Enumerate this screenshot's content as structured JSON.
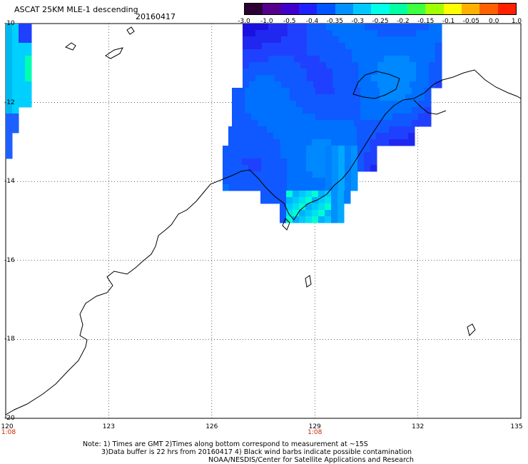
{
  "header": {
    "title": "ASCAT 25KM MLE-1 descending",
    "date": "20160417"
  },
  "colorbar": {
    "colors": [
      "#2b0033",
      "#55008c",
      "#4000cc",
      "#2020ff",
      "#0055ff",
      "#0090ff",
      "#00c8ff",
      "#00ffe6",
      "#00ffa0",
      "#40ff40",
      "#a0ff00",
      "#ffff00",
      "#ffb000",
      "#ff6000",
      "#ff2000"
    ],
    "labels": [
      "-3.0",
      "-1.0",
      "-0.5",
      "-0.4",
      "-0.35",
      "-0.3",
      "-0.25",
      "-0.2",
      "-0.15",
      "-0.1",
      "-0.05",
      "0.0",
      "1.0"
    ]
  },
  "axes": {
    "lat_labels": [
      "-10",
      "-12",
      "-14",
      "-16",
      "-18",
      "-20"
    ],
    "lon_labels": [
      "120",
      "123",
      "126",
      "129",
      "132",
      "135"
    ],
    "lat_range": [
      -10,
      -20
    ],
    "lon_range": [
      120,
      135
    ],
    "grid": "dotted"
  },
  "times": [
    {
      "lon": 120,
      "label": "1:08"
    },
    {
      "lon": 129,
      "label": "1:08"
    }
  ],
  "notes": {
    "line1": "Note: 1) Times are GMT 2)Times along bottom correspond to measurement at ~15S",
    "line2": "3)Data buffer is 22 hrs from 20160417 4) Black wind barbs indicate possible contamination",
    "line3": "NOAA/NESDIS/Center for Satellite Applications and Research"
  }
}
